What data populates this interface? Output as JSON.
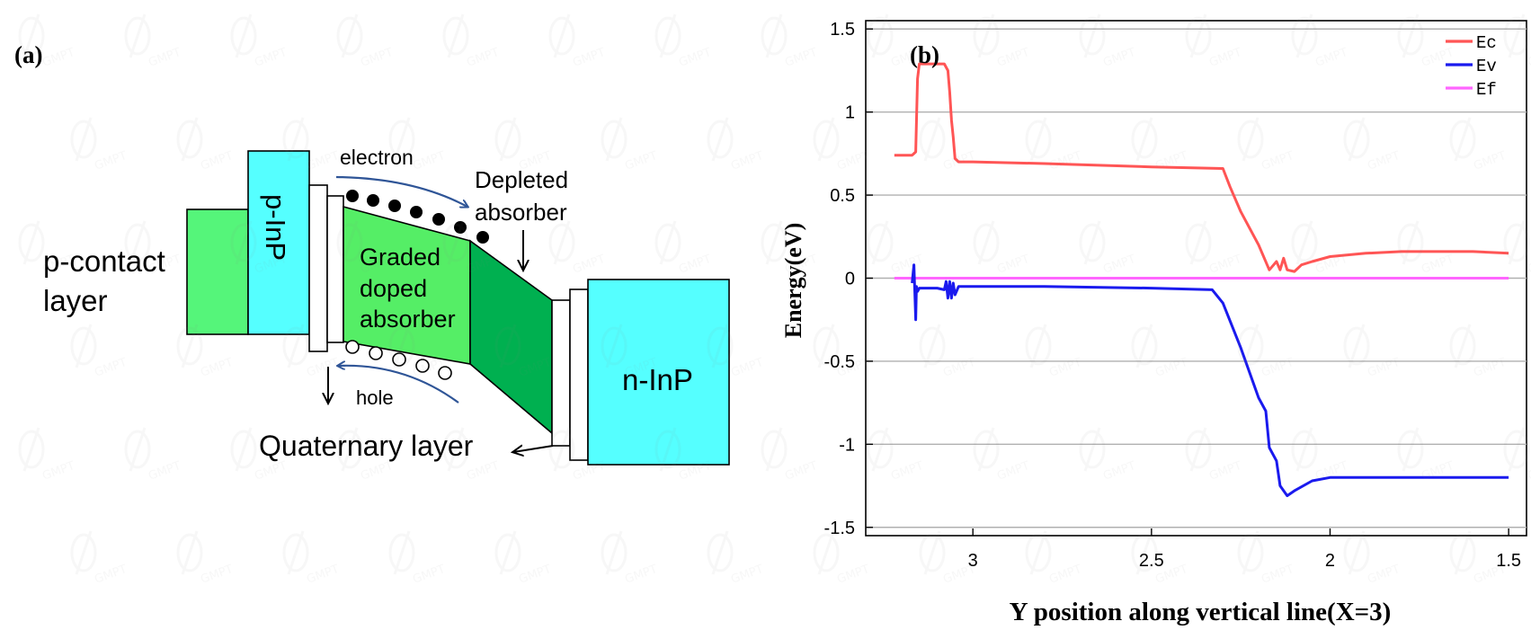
{
  "panel_a": {
    "label": "(a)",
    "p_contact_line1": "p-contact",
    "p_contact_line2": "layer",
    "p_inp": "p-InP",
    "electron": "electron",
    "depleted_line1": "Depleted",
    "depleted_line2": "absorber",
    "graded_line1": "Graded",
    "graded_line2": "doped",
    "graded_line3": "absorber",
    "hole": "hole",
    "quaternary": "Quaternary layer",
    "n_inp": "n-InP",
    "colors": {
      "contact_green": "#55f57a",
      "inp_cyan": "#55ffff",
      "graded_green": "#55ee66",
      "depleted_green": "#00b050",
      "arrow_blue": "#2f5597"
    }
  },
  "panel_b": {
    "label": "(b)",
    "watermark": "GMPT"
  },
  "chart_data": {
    "type": "line",
    "xlabel": "Y position along vertical line(X=3)",
    "ylabel": "Energy(eV)",
    "xlim": [
      3.3,
      1.45
    ],
    "x_reversed": true,
    "ylim": [
      -1.55,
      1.55
    ],
    "xticks": [
      3,
      2.5,
      2,
      1.5
    ],
    "xtick_labels": [
      "3",
      "2.5",
      "2",
      "1.5"
    ],
    "yticks": [
      1.5,
      1,
      0.5,
      0,
      -0.5,
      -1,
      -1.5
    ],
    "ytick_labels": [
      "1.5",
      "1",
      "0.5",
      "0",
      "-0.5",
      "-1",
      "-1.5"
    ],
    "grid": "horizontal",
    "legend_position": "top-right",
    "series": [
      {
        "name": "Ec",
        "color": "#ff5555",
        "x": [
          3.22,
          3.17,
          3.16,
          3.155,
          3.15,
          3.13,
          3.08,
          3.07,
          3.065,
          3.06,
          3.055,
          3.05,
          3.04,
          3.0,
          2.8,
          2.5,
          2.3,
          2.28,
          2.25,
          2.2,
          2.17,
          2.15,
          2.14,
          2.13,
          2.12,
          2.1,
          2.08,
          2.05,
          2.0,
          1.9,
          1.8,
          1.7,
          1.6,
          1.5
        ],
        "y": [
          0.74,
          0.74,
          0.76,
          1.2,
          1.29,
          1.29,
          1.29,
          1.25,
          1.12,
          0.95,
          0.85,
          0.72,
          0.7,
          0.7,
          0.69,
          0.67,
          0.66,
          0.55,
          0.4,
          0.2,
          0.05,
          0.1,
          0.05,
          0.12,
          0.05,
          0.04,
          0.08,
          0.1,
          0.13,
          0.15,
          0.16,
          0.16,
          0.16,
          0.15
        ]
      },
      {
        "name": "Ev",
        "color": "#1a1aee",
        "x": [
          3.17,
          3.165,
          3.16,
          3.158,
          3.155,
          3.15,
          3.13,
          3.1,
          3.08,
          3.075,
          3.07,
          3.065,
          3.06,
          3.055,
          3.05,
          3.04,
          3.0,
          2.8,
          2.5,
          2.33,
          2.3,
          2.25,
          2.2,
          2.18,
          2.17,
          2.15,
          2.14,
          2.12,
          2.1,
          2.05,
          2.0,
          1.9,
          1.8,
          1.6,
          1.5
        ],
        "y": [
          -0.03,
          0.08,
          -0.25,
          -0.05,
          -0.08,
          -0.06,
          -0.06,
          -0.06,
          -0.07,
          -0.02,
          -0.12,
          -0.02,
          -0.12,
          -0.03,
          -0.1,
          -0.05,
          -0.05,
          -0.05,
          -0.06,
          -0.07,
          -0.15,
          -0.42,
          -0.72,
          -0.8,
          -1.02,
          -1.1,
          -1.25,
          -1.31,
          -1.28,
          -1.22,
          -1.2,
          -1.2,
          -1.2,
          -1.2,
          -1.2
        ]
      },
      {
        "name": "Ef",
        "color": "#ff66ff",
        "x": [
          3.22,
          1.5
        ],
        "y": [
          0.0,
          0.0
        ]
      }
    ]
  }
}
